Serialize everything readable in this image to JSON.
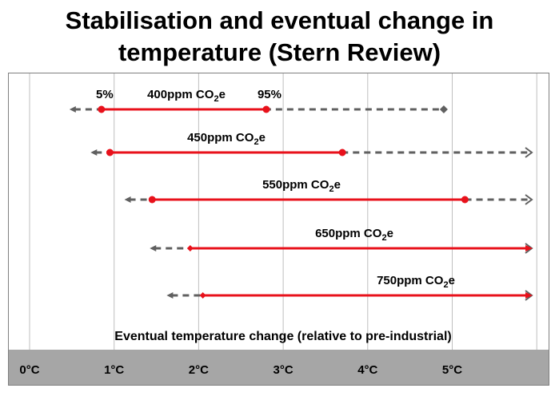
{
  "title_line1": "Stabilisation and eventual change in",
  "title_line2": "temperature (Stern Review)",
  "chart_data": {
    "type": "range",
    "xlabel": "Eventual temperature change (relative to pre-industrial)",
    "xticks": [
      {
        "value": 0,
        "label": "0°C"
      },
      {
        "value": 1,
        "label": "1°C"
      },
      {
        "value": 2,
        "label": "2°C"
      },
      {
        "value": 3,
        "label": "3°C"
      },
      {
        "value": 4,
        "label": "4°C"
      },
      {
        "value": 5,
        "label": "5°C"
      }
    ],
    "xlim": [
      -0.25,
      6.0
    ],
    "grid": true,
    "colors": {
      "likely_range": "#e8111b",
      "full_range": "#606060",
      "axis_band": "#a6a6a6",
      "grid": "#bfbfbf"
    },
    "series": [
      {
        "name_main": "400ppm CO",
        "name_sub": "2",
        "name_tail": "e",
        "p5": 0.85,
        "p95": 2.8,
        "full_low": 0.5,
        "full_high": 4.9,
        "open_ended": false,
        "low_label": "5%",
        "high_label": "95%"
      },
      {
        "name_main": "450ppm CO",
        "name_sub": "2",
        "name_tail": "e",
        "p5": 0.95,
        "p95": 3.7,
        "full_low": 0.75,
        "full_high": 6.0,
        "open_ended": true
      },
      {
        "name_main": "550ppm CO",
        "name_sub": "2",
        "name_tail": "e",
        "p5": 1.45,
        "p95": 5.15,
        "full_low": 1.15,
        "full_high": 6.0,
        "open_ended": true
      },
      {
        "name_main": "650ppm CO",
        "name_sub": "2",
        "name_tail": "e",
        "p5": 1.9,
        "p95": 6.0,
        "full_low": 1.45,
        "full_high": 6.0,
        "open_ended": true
      },
      {
        "name_main": "750ppm CO",
        "name_sub": "2",
        "name_tail": "e",
        "p5": 2.05,
        "p95": 6.0,
        "full_low": 1.65,
        "full_high": 6.0,
        "open_ended": true
      }
    ]
  }
}
